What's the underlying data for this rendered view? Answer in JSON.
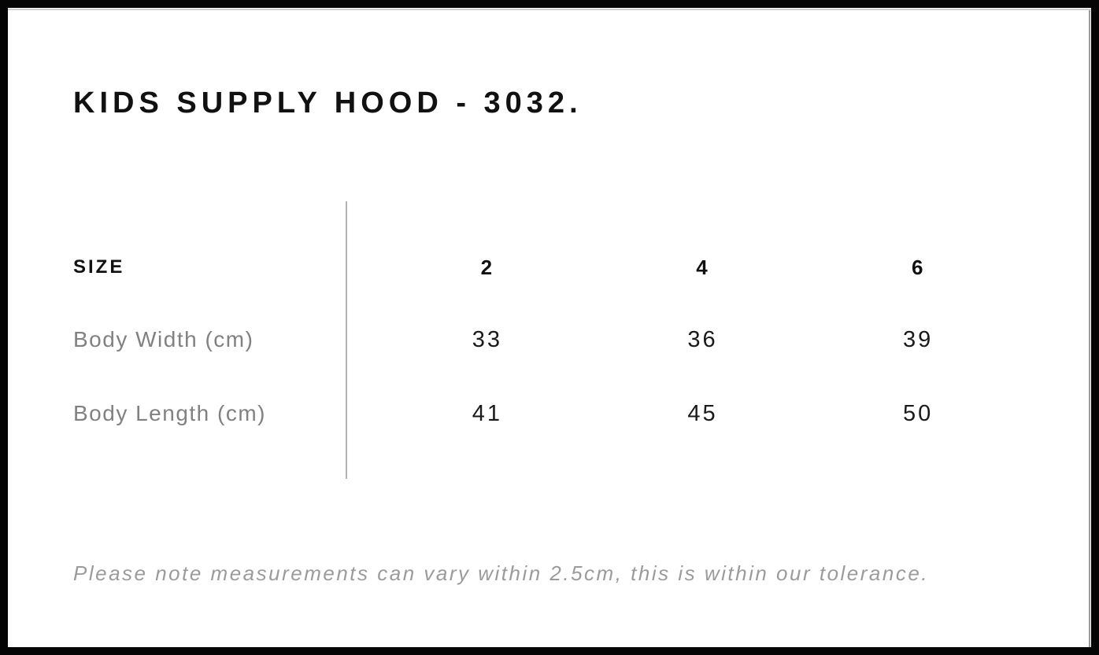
{
  "page": {
    "title": "KIDS SUPPLY HOOD - 3032.",
    "footnote": "Please note measurements can vary within 2.5cm, this is within our tolerance."
  },
  "size_chart": {
    "header_label": "SIZE",
    "sizes": [
      "2",
      "4",
      "6"
    ],
    "rows": [
      {
        "label": "Body Width (cm)",
        "values": [
          "33",
          "36",
          "39"
        ]
      },
      {
        "label": "Body Length (cm)",
        "values": [
          "41",
          "45",
          "50"
        ]
      }
    ]
  },
  "colors": {
    "frame": "#050505",
    "heading_text": "#111111",
    "value_text": "#1a1a1a",
    "label_text": "#818181",
    "footnote_text": "#9b9b9b",
    "divider": "#b1b1b1"
  }
}
